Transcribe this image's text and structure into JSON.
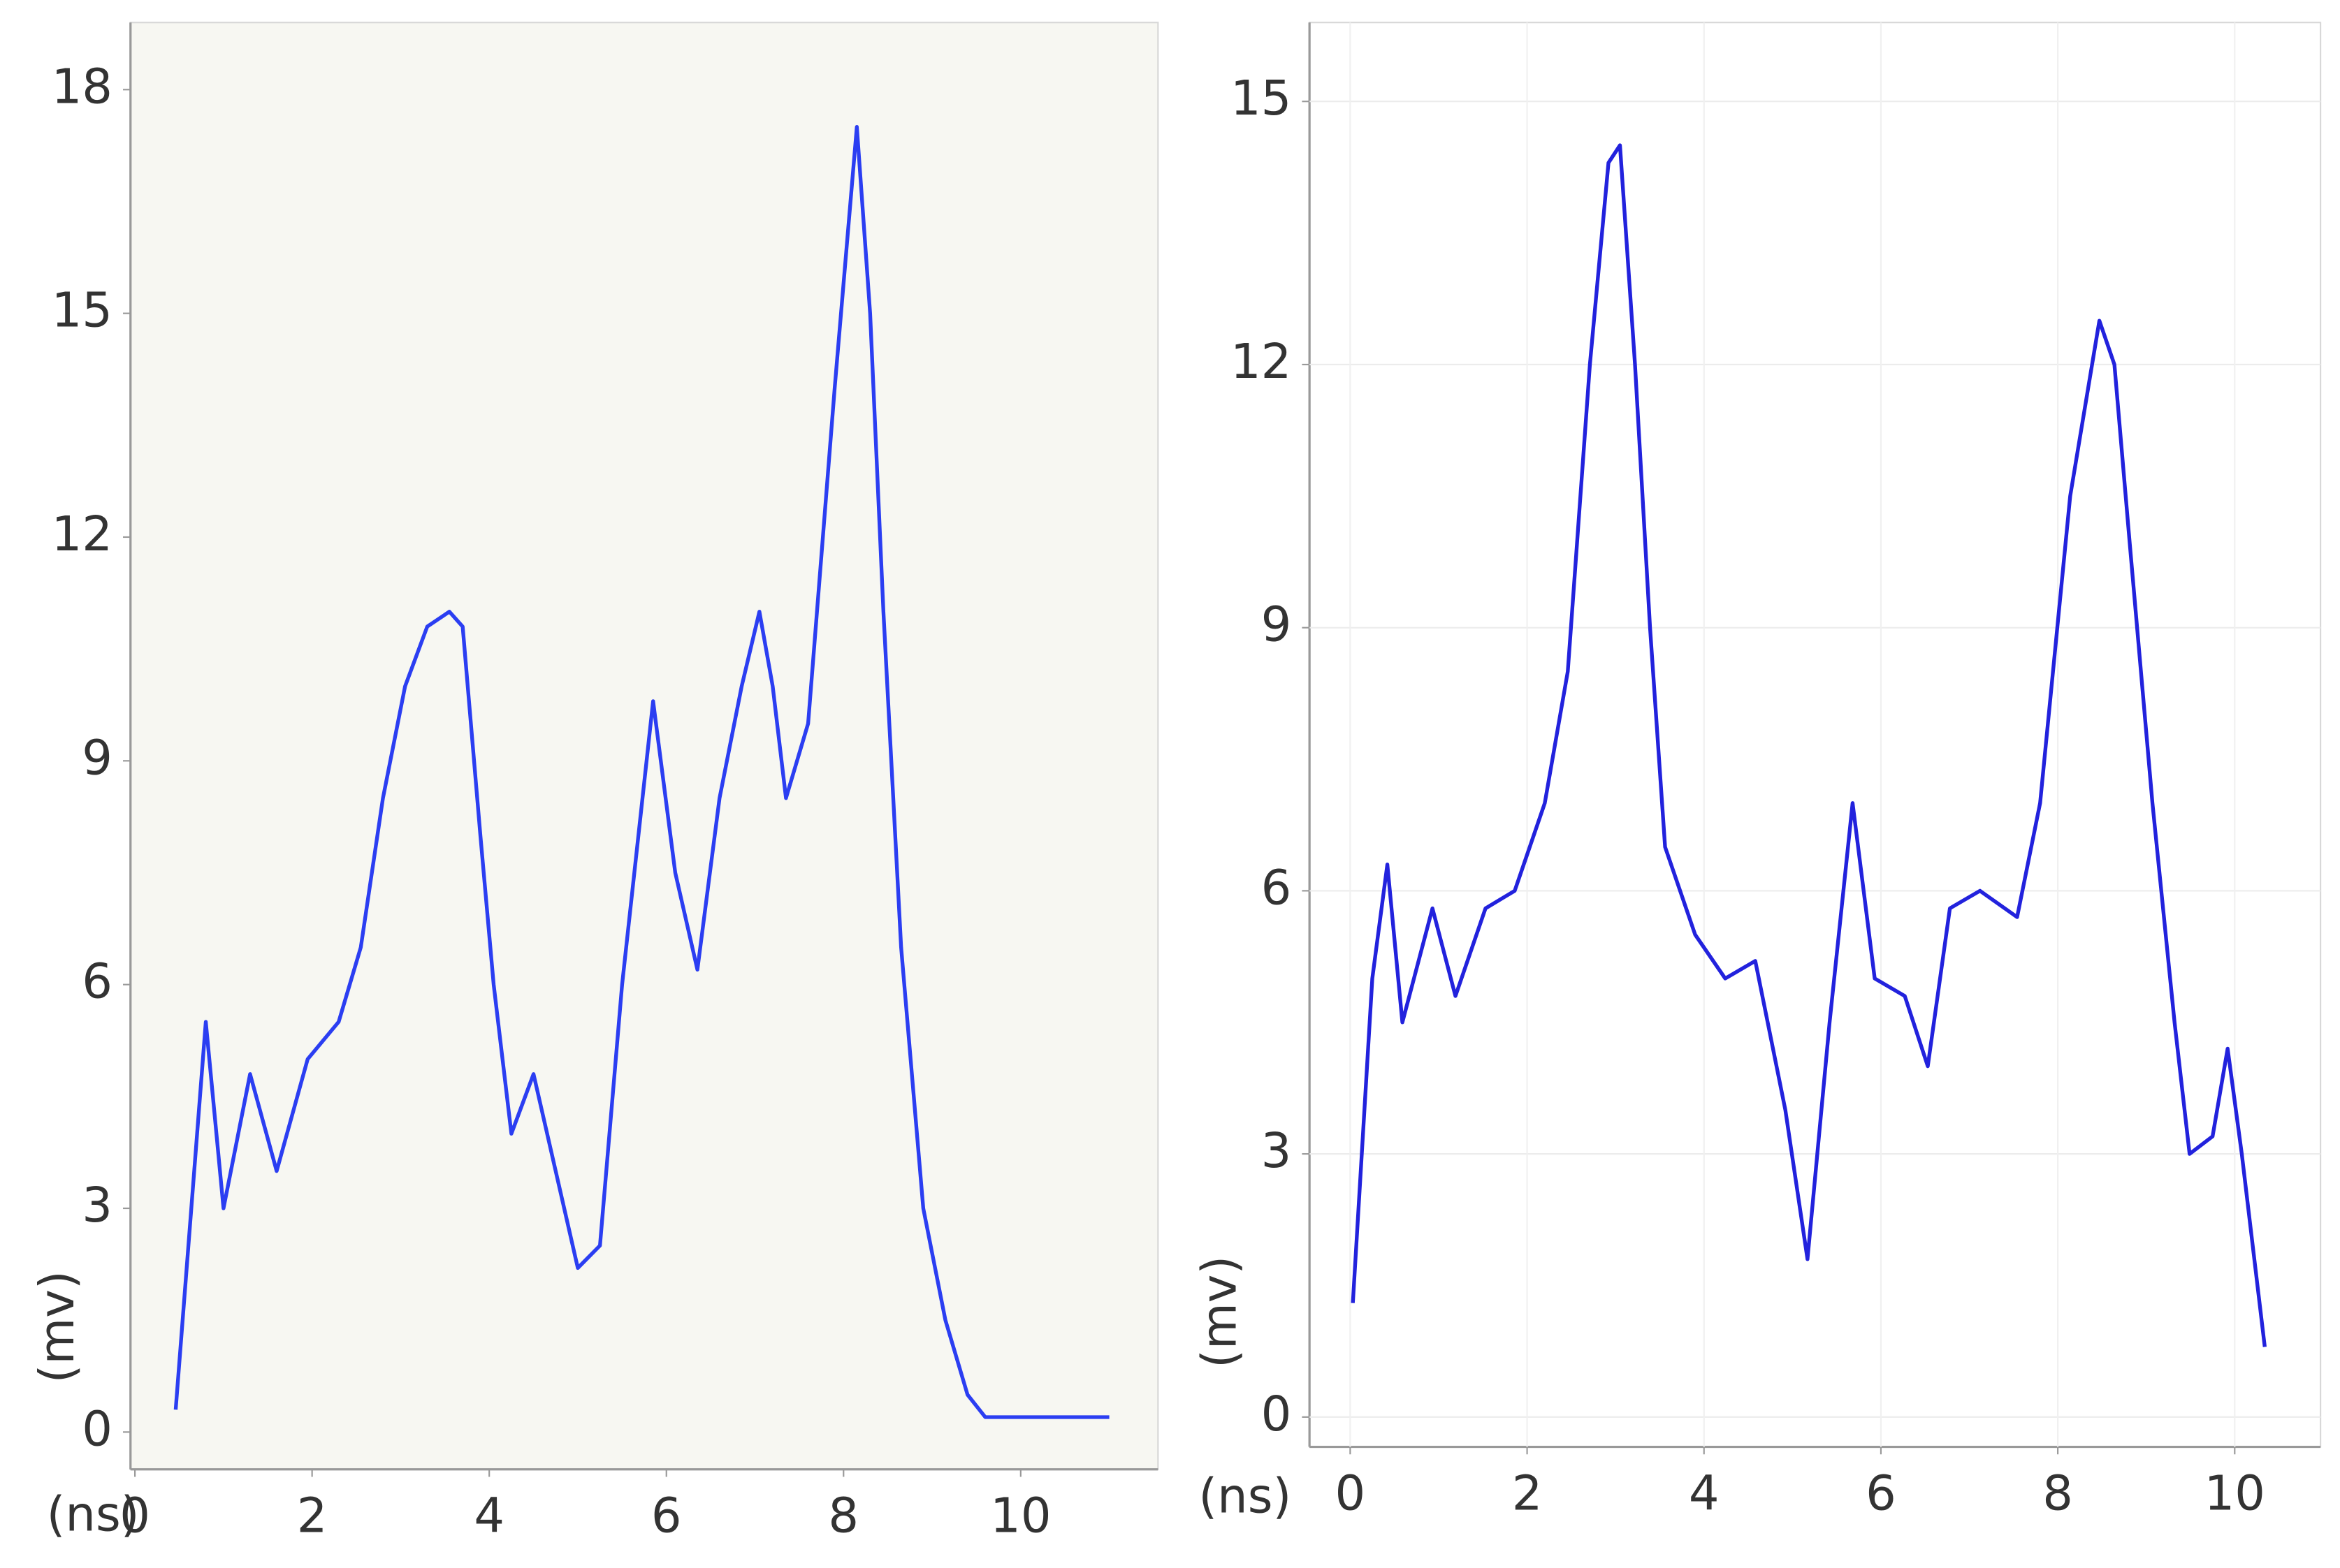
{
  "chart_data": [
    {
      "type": "line",
      "x_label": "(ns)",
      "y_label": "(mv)",
      "background": "#f7f7f2",
      "grid": false,
      "xlim": [
        -0.05,
        11.55
      ],
      "xticks": [
        0,
        2,
        4,
        6,
        8,
        10
      ],
      "ylim": [
        -0.5,
        18.9
      ],
      "yticks": [
        0,
        3,
        6,
        9,
        12,
        15,
        18
      ],
      "series": [
        {
          "color": "#2b3ef2",
          "x": [
            0.46,
            0.8,
            1.0,
            1.3,
            1.6,
            1.95,
            2.3,
            2.55,
            2.8,
            3.05,
            3.3,
            3.55,
            3.7,
            3.9,
            4.05,
            4.25,
            4.5,
            4.75,
            5.0,
            5.25,
            5.5,
            5.85,
            6.1,
            6.35,
            6.6,
            6.85,
            7.05,
            7.2,
            7.35,
            7.6,
            7.9,
            8.15,
            8.3,
            8.45,
            8.65,
            8.9,
            9.15,
            9.4,
            9.6,
            11.0
          ],
          "values": [
            0.3,
            5.5,
            3,
            4.8,
            3.5,
            5,
            5.5,
            6.5,
            8.5,
            10,
            10.8,
            11,
            10.8,
            8,
            6,
            4,
            4.8,
            3.5,
            2.2,
            2.5,
            6,
            9.8,
            7.5,
            6.2,
            8.5,
            10,
            11,
            10,
            8.5,
            9.5,
            14,
            17.5,
            15,
            11,
            6.5,
            3,
            1.5,
            0.5,
            0.2,
            0.2
          ]
        }
      ]
    },
    {
      "type": "line",
      "x_label": "(ns)",
      "y_label": "(mv)",
      "background": "#ffffff",
      "grid": true,
      "xlim": [
        -0.46,
        10.97
      ],
      "xticks": [
        0,
        2,
        4,
        6,
        8,
        10
      ],
      "ylim": [
        -0.34,
        15.9
      ],
      "yticks": [
        0,
        3,
        6,
        9,
        12,
        15
      ],
      "series": [
        {
          "color": "#2222dd",
          "x": [
            0.03,
            0.25,
            0.42,
            0.59,
            0.93,
            1.19,
            1.53,
            1.86,
            2.2,
            2.46,
            2.71,
            2.92,
            3.05,
            3.22,
            3.39,
            3.56,
            3.9,
            4.24,
            4.58,
            4.92,
            5.17,
            5.42,
            5.68,
            5.93,
            6.27,
            6.53,
            6.78,
            7.12,
            7.54,
            7.8,
            8.14,
            8.47,
            8.64,
            8.81,
            9.07,
            9.32,
            9.49,
            9.75,
            9.92,
            10.08,
            10.34
          ],
          "values": [
            1.3,
            5,
            6.3,
            4.5,
            5.8,
            4.8,
            5.8,
            6,
            7,
            8.5,
            12,
            14.3,
            14.5,
            12,
            9,
            6.5,
            5.5,
            5,
            5.2,
            3.5,
            1.8,
            4.5,
            7,
            5,
            4.8,
            4,
            5.8,
            6,
            5.7,
            7,
            10.5,
            12.5,
            12,
            10,
            7,
            4.5,
            3,
            3.2,
            4.2,
            3,
            0.8
          ]
        }
      ]
    }
  ]
}
